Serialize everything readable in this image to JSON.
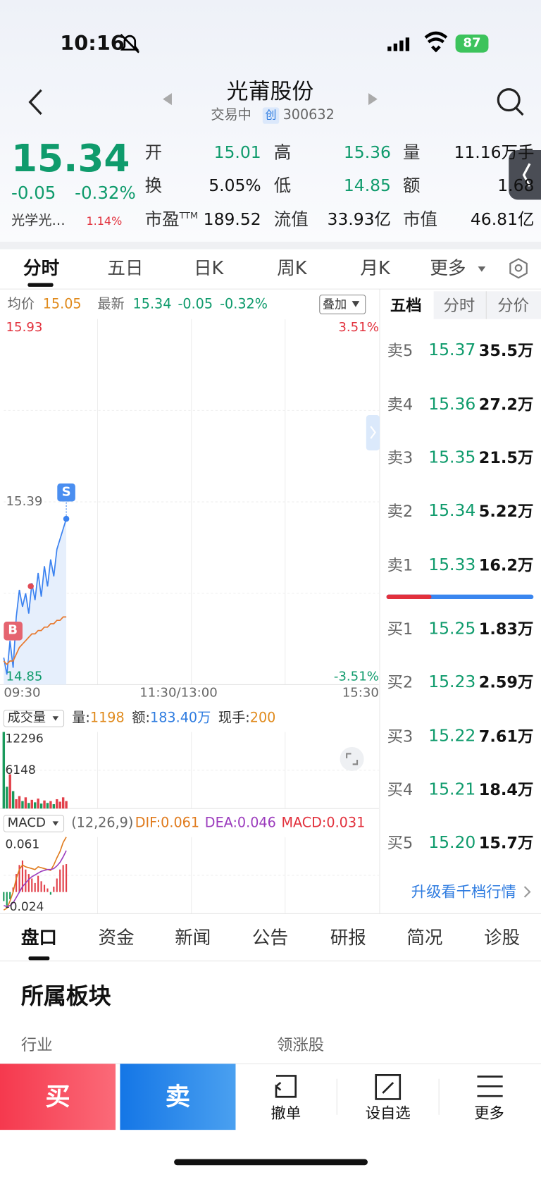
{
  "status": {
    "time": "10:16",
    "battery": "87"
  },
  "header": {
    "title": "光莆股份",
    "state": "交易中",
    "board": "创",
    "code": "300632"
  },
  "quote": {
    "price": "15.34",
    "change": "-0.05",
    "change_pct": "-0.32%",
    "sector": "光学光…",
    "sector_pct": "1.14%"
  },
  "stats": [
    {
      "label": "开",
      "value": "15.01"
    },
    {
      "label": "高",
      "value": "15.36"
    },
    {
      "label": "量",
      "value": "11.16万手"
    },
    {
      "label": "换",
      "value": "5.05%"
    },
    {
      "label": "低",
      "value": "14.85"
    },
    {
      "label": "额",
      "value": "1.68"
    },
    {
      "label": "市盈",
      "sup": "TTM",
      "value": "189.52"
    },
    {
      "label": "流值",
      "value": "33.93亿"
    },
    {
      "label": "市值",
      "value": "46.81亿"
    }
  ],
  "chart_tabs": [
    "分时",
    "五日",
    "日K",
    "周K",
    "月K",
    "更多"
  ],
  "chart_info": {
    "avg_label": "均价",
    "avg": "15.05",
    "last_label": "最新",
    "last": "15.34",
    "change": "-0.05",
    "pct": "-0.32%",
    "overlay": "叠加"
  },
  "price_ticks": [
    15.93,
    15.39,
    14.85
  ],
  "pct_ticks": [
    {
      "value": 3.51,
      "label": "3.51%"
    },
    {
      "value": -3.51,
      "label": "-3.51%"
    }
  ],
  "time_labels": [
    "09:30",
    "11:30/13:00",
    "15:30"
  ],
  "markers": {
    "sell": "S",
    "buy": "B"
  },
  "price_line": [
    14.93,
    14.88,
    14.98,
    14.9,
    15.05,
    15.13,
    15.08,
    15.12,
    15.06,
    15.15,
    15.1,
    15.18,
    15.11,
    15.2,
    15.14,
    15.22,
    15.17,
    15.25,
    15.28,
    15.31,
    15.34
  ],
  "avg_line": [
    14.92,
    14.91,
    14.92,
    14.92,
    14.94,
    14.96,
    14.97,
    14.98,
    14.99,
    15.0,
    15.0,
    15.01,
    15.01,
    15.02,
    15.02,
    15.03,
    15.03,
    15.04,
    15.04,
    15.05,
    15.05
  ],
  "volume": {
    "title": "成交量",
    "vol_label": "量:",
    "vol": "1198",
    "amt_label": "额:",
    "amt": "183.40万",
    "hand_label": "现手:",
    "hand": "200",
    "ticks": [
      12296,
      6148
    ],
    "bars": [
      12296,
      3500,
      5500,
      2800,
      1500,
      2000,
      1200,
      1800,
      900,
      1400,
      1000,
      1600,
      800,
      1300,
      900,
      1200,
      700,
      1500,
      1100,
      1800,
      1198
    ]
  },
  "macd": {
    "title": "MACD",
    "params": "(12,26,9)",
    "dif": "DIF:0.061",
    "dea": "DEA:0.046",
    "macd": "MACD:0.031",
    "ticks": [
      0.061,
      -0.024
    ],
    "hist": [
      -0.01,
      -0.015,
      -0.008,
      0.005,
      0.02,
      0.03,
      0.035,
      0.025,
      0.02,
      0.015,
      0.01,
      0.018,
      0.012,
      0.008,
      0.004,
      -0.003,
      0.006,
      0.015,
      0.025,
      0.03,
      0.031
    ],
    "dif_line": [
      -0.02,
      -0.018,
      -0.01,
      0.0,
      0.015,
      0.025,
      0.03,
      0.028,
      0.027,
      0.026,
      0.025,
      0.028,
      0.027,
      0.026,
      0.025,
      0.024,
      0.03,
      0.038,
      0.045,
      0.055,
      0.061
    ],
    "dea_line": [
      -0.015,
      -0.016,
      -0.015,
      -0.012,
      -0.006,
      0.0,
      0.006,
      0.01,
      0.014,
      0.017,
      0.019,
      0.021,
      0.023,
      0.024,
      0.025,
      0.025,
      0.026,
      0.029,
      0.033,
      0.039,
      0.046
    ]
  },
  "order_book": {
    "tabs": [
      "五档",
      "分时",
      "分价"
    ],
    "sells": [
      {
        "label": "卖5",
        "price": "15.37",
        "volume": "35.5万"
      },
      {
        "label": "卖4",
        "price": "15.36",
        "volume": "27.2万"
      },
      {
        "label": "卖3",
        "price": "15.35",
        "volume": "21.5万"
      },
      {
        "label": "卖2",
        "price": "15.34",
        "volume": "5.22万"
      },
      {
        "label": "卖1",
        "price": "15.33",
        "volume": "16.2万"
      }
    ],
    "buys": [
      {
        "label": "买1",
        "price": "15.25",
        "volume": "1.83万"
      },
      {
        "label": "买2",
        "price": "15.23",
        "volume": "2.59万"
      },
      {
        "label": "买3",
        "price": "15.22",
        "volume": "7.61万"
      },
      {
        "label": "买4",
        "price": "15.21",
        "volume": "18.4万"
      },
      {
        "label": "买5",
        "price": "15.20",
        "volume": "15.7万"
      }
    ],
    "upgrade": "升级看千档行情"
  },
  "detail_tabs": [
    "盘口",
    "资金",
    "新闻",
    "公告",
    "研报",
    "简况",
    "诊股"
  ],
  "section": {
    "title": "所属板块",
    "industry": "行业",
    "leader": "领涨股"
  },
  "actions": {
    "buy": "买",
    "sell": "卖",
    "cancel": "撤单",
    "watch": "设自选",
    "more": "更多"
  }
}
